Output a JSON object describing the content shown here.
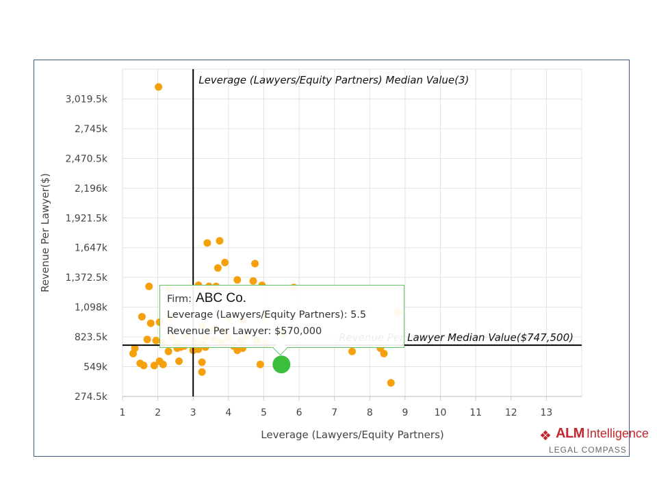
{
  "chart_data": {
    "type": "scatter",
    "xlabel": "Leverage (Lawyers/Equity Partners)",
    "ylabel": "Revenue Per Lawyer($)",
    "xlim": [
      1,
      14
    ],
    "ylim": [
      274500,
      3294000
    ],
    "x_ticks": [
      1,
      2,
      3,
      4,
      5,
      6,
      7,
      8,
      9,
      10,
      11,
      12,
      13
    ],
    "y_ticks": [
      {
        "value": 274500,
        "label": "274.5k"
      },
      {
        "value": 549000,
        "label": "549k"
      },
      {
        "value": 823500,
        "label": "823.5k"
      },
      {
        "value": 1098000,
        "label": "1,098k"
      },
      {
        "value": 1372500,
        "label": "1,372.5k"
      },
      {
        "value": 1647000,
        "label": "1,647k"
      },
      {
        "value": 1921500,
        "label": "1,921.5k"
      },
      {
        "value": 2196000,
        "label": "2,196k"
      },
      {
        "value": 2470500,
        "label": "2,470.5k"
      },
      {
        "value": 2745000,
        "label": "2,745k"
      },
      {
        "value": 3019500,
        "label": "3,019.5k"
      }
    ],
    "grid": true,
    "series": [
      {
        "color": "#f5a10e",
        "points": [
          [
            2.02,
            3130000
          ],
          [
            3.4,
            1690000
          ],
          [
            3.75,
            1710000
          ],
          [
            3.7,
            1460000
          ],
          [
            3.9,
            1510000
          ],
          [
            4.75,
            1500000
          ],
          [
            4.25,
            1350000
          ],
          [
            4.7,
            1340000
          ],
          [
            4.95,
            1300000
          ],
          [
            1.75,
            1290000
          ],
          [
            2.3,
            1270000
          ],
          [
            3.15,
            1300000
          ],
          [
            3.45,
            1290000
          ],
          [
            3.65,
            1290000
          ],
          [
            5.85,
            1280000
          ],
          [
            1.55,
            1010000
          ],
          [
            1.8,
            950000
          ],
          [
            2.05,
            960000
          ],
          [
            2.35,
            1000000
          ],
          [
            4.0,
            1000000
          ],
          [
            4.4,
            980000
          ],
          [
            5.0,
            1010000
          ],
          [
            3.25,
            920000
          ],
          [
            3.6,
            900000
          ],
          [
            3.9,
            870000
          ],
          [
            1.7,
            800000
          ],
          [
            1.95,
            790000
          ],
          [
            2.15,
            770000
          ],
          [
            2.4,
            820000
          ],
          [
            2.55,
            760000
          ],
          [
            2.65,
            730000
          ],
          [
            2.8,
            840000
          ],
          [
            3.05,
            780000
          ],
          [
            3.25,
            760000
          ],
          [
            3.35,
            830000
          ],
          [
            3.6,
            800000
          ],
          [
            3.8,
            770000
          ],
          [
            4.0,
            810000
          ],
          [
            4.15,
            740000
          ],
          [
            4.35,
            790000
          ],
          [
            4.5,
            830000
          ],
          [
            4.8,
            790000
          ],
          [
            5.05,
            760000
          ],
          [
            5.55,
            850000
          ],
          [
            1.35,
            720000
          ],
          [
            1.3,
            670000
          ],
          [
            2.3,
            690000
          ],
          [
            2.55,
            720000
          ],
          [
            2.75,
            740000
          ],
          [
            3.0,
            700000
          ],
          [
            3.15,
            710000
          ],
          [
            3.35,
            730000
          ],
          [
            4.25,
            700000
          ],
          [
            4.4,
            720000
          ],
          [
            1.5,
            580000
          ],
          [
            1.6,
            560000
          ],
          [
            1.9,
            560000
          ],
          [
            2.05,
            600000
          ],
          [
            2.15,
            570000
          ],
          [
            2.6,
            600000
          ],
          [
            3.25,
            590000
          ],
          [
            3.25,
            500000
          ],
          [
            4.9,
            570000
          ],
          [
            7.5,
            690000
          ],
          [
            8.3,
            720000
          ],
          [
            8.4,
            670000
          ],
          [
            8.6,
            400000
          ],
          [
            8.8,
            1050000
          ]
        ]
      },
      {
        "name": "ABC Co.",
        "color": "#3cbf3c",
        "points": [
          [
            5.5,
            570000
          ]
        ]
      }
    ],
    "reference_lines": [
      {
        "axis": "x",
        "value": 3,
        "label": "Leverage (Lawyers/Equity Partners) Median Value(3)"
      },
      {
        "axis": "y",
        "value": 747500,
        "label": "Revenue Per Lawyer Median Value($747,500)"
      }
    ],
    "tooltip": {
      "firm_label": "Firm:",
      "firm_name": "ABC Co.",
      "leverage_text": "Leverage (Lawyers/Equity Partners): 5.5",
      "revenue_text": "Revenue Per Lawyer: $570,000"
    }
  },
  "logo": {
    "brand_strong": "ALM",
    "brand_light": "Intelligence",
    "sub": "LEGAL COMPASS",
    "color": "#c0282d"
  }
}
